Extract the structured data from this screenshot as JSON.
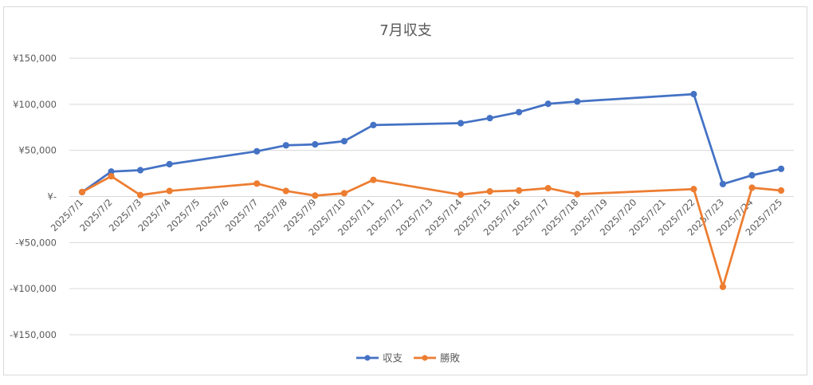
{
  "chart_data": {
    "type": "line",
    "title": "7月収支",
    "categories": [
      "2025/7/1",
      "2025/7/2",
      "2025/7/3",
      "2025/7/4",
      "2025/7/5",
      "2025/7/6",
      "2025/7/7",
      "2025/7/8",
      "2025/7/9",
      "2025/7/10",
      "2025/7/11",
      "2025/7/12",
      "2025/7/13",
      "2025/7/14",
      "2025/7/15",
      "2025/7/16",
      "2025/7/17",
      "2025/7/18",
      "2025/7/19",
      "2025/7/20",
      "2025/7/21",
      "2025/7/22",
      "2025/7/23",
      "2025/7/24",
      "2025/7/25"
    ],
    "series": [
      {
        "name": "収支",
        "color": "#4472C4",
        "values": [
          4800,
          27000,
          28500,
          35000,
          null,
          null,
          49000,
          55500,
          56500,
          60000,
          77500,
          null,
          null,
          79500,
          85000,
          91500,
          100500,
          103000,
          null,
          null,
          null,
          111000,
          13500,
          23000,
          30000
        ]
      },
      {
        "name": "勝敗",
        "color": "#ED7D31",
        "values": [
          4800,
          22000,
          1500,
          6000,
          null,
          null,
          14000,
          6000,
          1000,
          3500,
          18000,
          null,
          null,
          2000,
          5500,
          6500,
          9000,
          2500,
          null,
          null,
          null,
          8000,
          -98000,
          9500,
          6500
        ]
      }
    ],
    "y_ticks": [
      "¥150,000",
      "¥100,000",
      "¥50,000",
      "¥-",
      "-¥50,000",
      "-¥100,000",
      "-¥150,000"
    ],
    "ylim": [
      -150000,
      150000
    ],
    "grid": true,
    "legend": "bottom",
    "xlabel": "",
    "ylabel": ""
  }
}
